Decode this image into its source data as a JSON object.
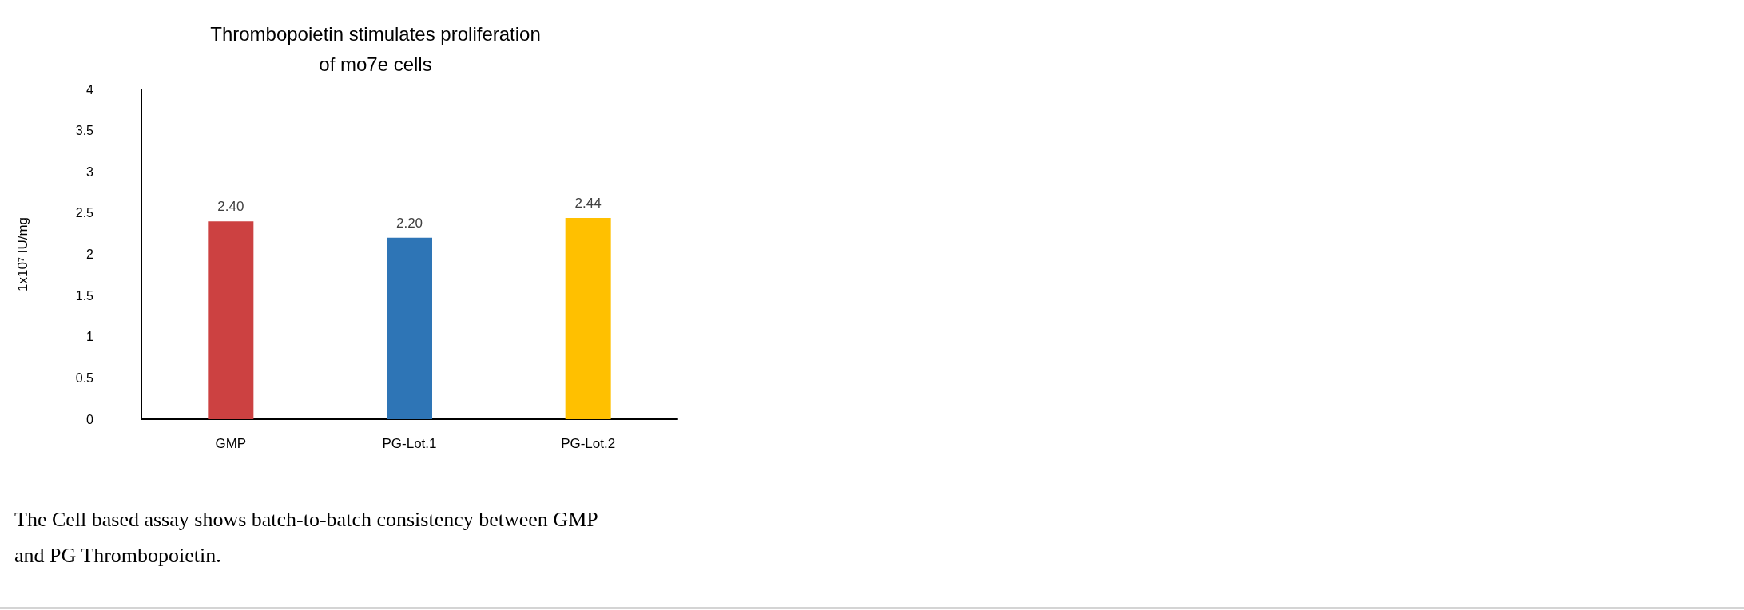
{
  "chart_data": {
    "type": "bar",
    "title": "Thrombopoietin stimulates proliferation\nof mo7e cells",
    "ylabel": "1x10⁷ IU/mg",
    "categories": [
      "GMP",
      "PG-Lot.1",
      "PG-Lot.2"
    ],
    "values": [
      2.4,
      2.2,
      2.44
    ],
    "colors": [
      "#cc4141",
      "#2e75b6",
      "#ffc000"
    ],
    "value_labels": [
      "2.40",
      "2.20",
      "2.44"
    ],
    "ylim": [
      0,
      4
    ],
    "yticks": [
      0,
      0.5,
      1,
      1.5,
      2,
      2.5,
      3,
      3.5,
      4
    ],
    "grid": false,
    "annotations": [
      "The Cell based assay shows batch-to-batch consistency between GMP\nand PG Thrombopoietin."
    ]
  }
}
